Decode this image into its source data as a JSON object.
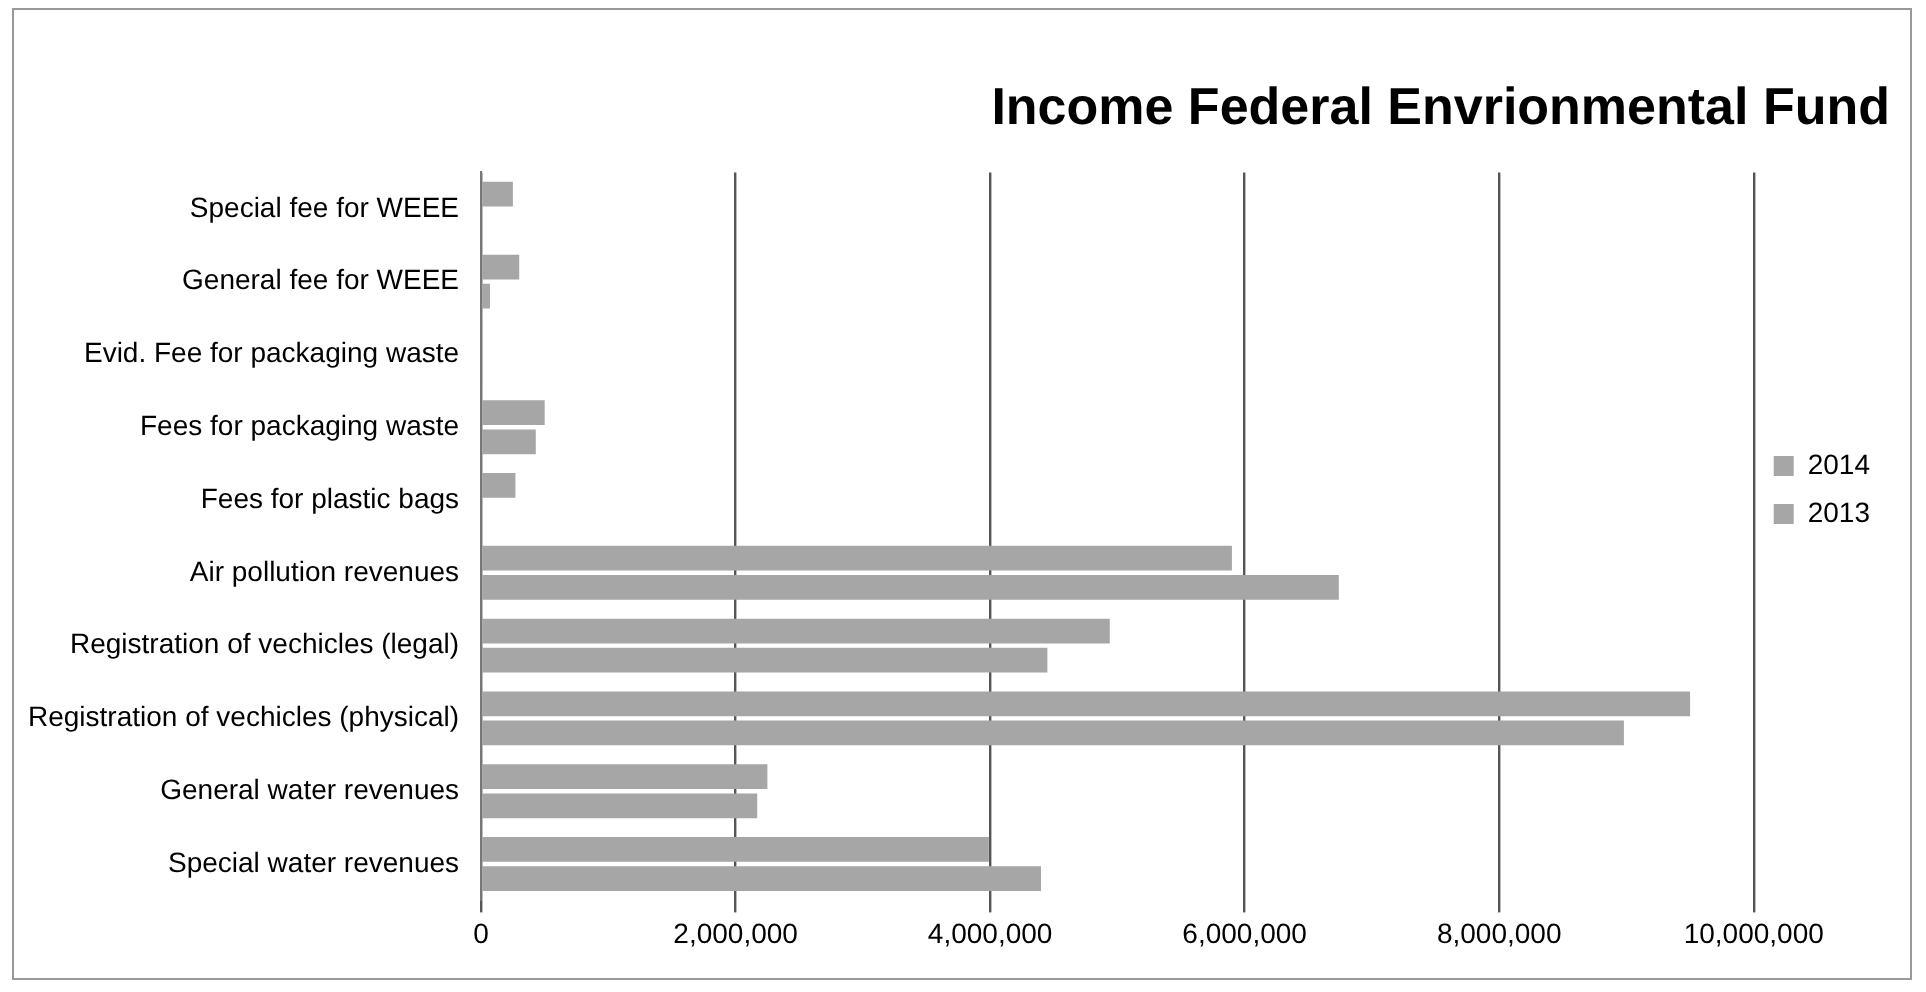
{
  "chart_data": {
    "type": "bar",
    "orientation": "horizontal",
    "title": "Income Federal Envrionmental Fund",
    "categories": [
      "Special fee for WEEE",
      "General fee for WEEE",
      "Evid. Fee for packaging waste",
      "Fees for packaging waste",
      "Fees for plastic bags",
      "Air pollution revenues",
      "Registration of vechicles (legal)",
      "Registration of vechicles (physical)",
      "General water revenues",
      "Special water revenues"
    ],
    "series": [
      {
        "name": "2014",
        "color": "#a6a6a6",
        "values": [
          250000,
          300000,
          10000,
          500000,
          270000,
          5900000,
          4940000,
          9500000,
          2250000,
          3990000
        ]
      },
      {
        "name": "2013",
        "color": "#a6a6a6",
        "values": [
          null,
          70000,
          10000,
          430000,
          null,
          6740000,
          4450000,
          8980000,
          2170000,
          4400000
        ]
      }
    ],
    "xlim": [
      0,
      10000000
    ],
    "xticks": [
      {
        "value": 0,
        "label": "0"
      },
      {
        "value": 2000000,
        "label": "2,000,000"
      },
      {
        "value": 4000000,
        "label": "4,000,000"
      },
      {
        "value": 6000000,
        "label": "6,000,000"
      },
      {
        "value": 8000000,
        "label": "8,000,000"
      },
      {
        "value": 10000000,
        "label": "10,000,000"
      }
    ],
    "grid": "x",
    "legend": "right"
  }
}
